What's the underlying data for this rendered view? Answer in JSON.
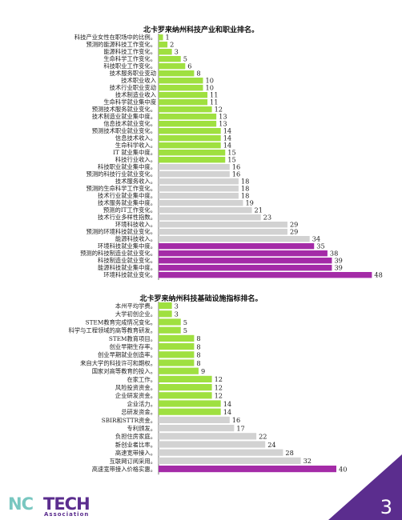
{
  "colors": {
    "green": "#9fe040",
    "gray": "#d2d2d2",
    "purple": "#a42ba7",
    "brand_purple": "#5b2d8e",
    "brand_teal": "#78c7c0"
  },
  "chart_data": [
    {
      "type": "bar",
      "orientation": "horizontal",
      "title": "北卡罗来纳州科技产业和职业排名。",
      "categories": [
        "科技产业女性在职场中的比例。",
        "预测的能源科技工作变化。",
        "能源科技工作变化。",
        "生命科学工作变化。",
        "科技职业工作变化。",
        "技术服务职业变动",
        "技术职业收入",
        "技术行业职业变动",
        "技术制造业收入",
        "生命科学就业集中度",
        "预测技术服务就业变化。",
        "技术制造业就业集中度。",
        "信息技术就业变化。",
        "预测技术职业就业变化。",
        "信息技术收入。",
        "生命科学收入。",
        "IT 就业集中度。",
        "科技行业收入。",
        "科技职业就业集中度。",
        "预测的科技行业就业变化。",
        "技术服务收入。",
        "预测的生命科学工作变化。",
        "技术行业就业集中度。",
        "技术服务就业集中度。",
        "预测的IT工作变化。",
        "技术行业多样性指数。",
        "环境科技收入。",
        "预测的环境科技就业变化。",
        "能源科技收入。",
        "环境科技就业集中度。",
        "预测的科技制造业就业变化。",
        "科技制造业就业变化。",
        "能源科技就业集中度。",
        "环境科技就业变化。"
      ],
      "values": [
        1,
        2,
        3,
        5,
        6,
        8,
        10,
        10,
        11,
        11,
        12,
        13,
        13,
        14,
        14,
        14,
        15,
        15,
        16,
        16,
        18,
        18,
        18,
        19,
        21,
        23,
        29,
        29,
        34,
        35,
        38,
        39,
        39,
        48
      ],
      "bar_colors": [
        "green",
        "green",
        "green",
        "green",
        "green",
        "green",
        "green",
        "green",
        "green",
        "green",
        "green",
        "green",
        "green",
        "green",
        "green",
        "green",
        "green",
        "green",
        "gray",
        "gray",
        "gray",
        "gray",
        "gray",
        "gray",
        "gray",
        "gray",
        "gray",
        "gray",
        "gray",
        "purple",
        "purple",
        "purple",
        "purple",
        "purple"
      ],
      "xlim": [
        0,
        50
      ]
    },
    {
      "type": "bar",
      "orientation": "horizontal",
      "title": "北卡罗来纳州科技基础设施指标排名。",
      "categories": [
        "本州平均学费。",
        "大学初创企业。",
        "STEM教育完成情况变化。",
        "科学与工程领域的高等教育研发。",
        "STEM教育项目。",
        "创业早期生存率。",
        "创业早期就业创造率。",
        "来自大学的科技许可和期权。",
        "国家对高等教育的投入。",
        "在家工作。",
        "风险投资资金。",
        "企业研发资金。",
        "企业活力。",
        "总研发资金。",
        "SBIR和STTR资金。",
        "专利颁发。",
        "负担住房家庭。",
        "新创业者比率。",
        "高速宽带接入。",
        "互联网订阅采用。",
        "高速宽带接入价格实惠。"
      ],
      "values": [
        3,
        3,
        5,
        5,
        8,
        8,
        8,
        8,
        9,
        12,
        12,
        12,
        14,
        14,
        16,
        17,
        22,
        24,
        28,
        32,
        40
      ],
      "bar_colors": [
        "green",
        "green",
        "green",
        "green",
        "green",
        "green",
        "green",
        "green",
        "green",
        "green",
        "green",
        "green",
        "green",
        "green",
        "gray",
        "gray",
        "gray",
        "gray",
        "gray",
        "gray",
        "purple"
      ],
      "xlim": [
        0,
        50
      ]
    }
  ],
  "logo": {
    "nc": "NC",
    "tech": "TECH",
    "association": "Association"
  },
  "page_number": "3"
}
